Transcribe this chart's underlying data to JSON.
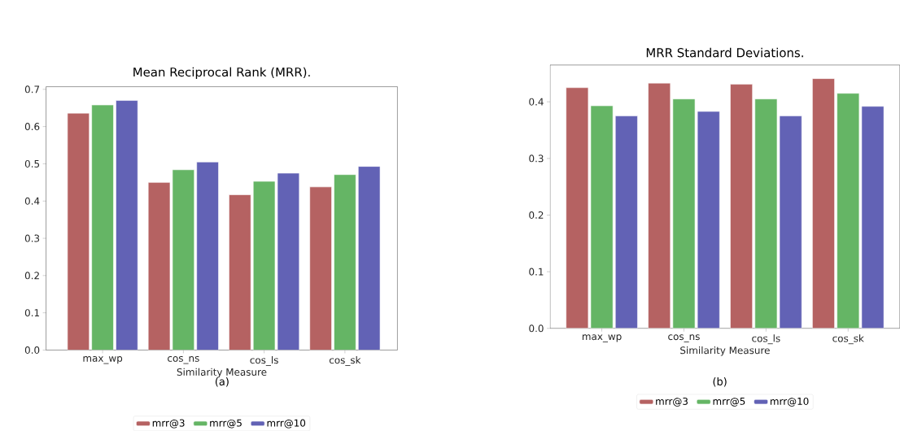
{
  "chart_data": [
    {
      "type": "bar",
      "title": "Mean Reciprocal Rank (MRR).",
      "xlabel": "Similarity Measure",
      "categories": [
        "max_wp",
        "cos_ns",
        "cos_ls",
        "cos_sk"
      ],
      "series": [
        {
          "name": "mrr@3",
          "color": "#b56262",
          "values": [
            0.636,
            0.45,
            0.417,
            0.438
          ]
        },
        {
          "name": "mrr@5",
          "color": "#65b565",
          "values": [
            0.658,
            0.484,
            0.453,
            0.471
          ]
        },
        {
          "name": "mrr@10",
          "color": "#6262b5",
          "values": [
            0.67,
            0.505,
            0.475,
            0.493
          ]
        }
      ],
      "ylim": [
        0,
        0.707
      ],
      "yticks": [
        {
          "value": 0,
          "label": "0.0"
        },
        0.1,
        0.2,
        0.3,
        0.4,
        0.5,
        0.6,
        0.7
      ],
      "legend": "bottom",
      "annotations": [
        "(a)"
      ]
    },
    {
      "type": "bar",
      "title": "MRR Standard Deviations.",
      "xlabel": "Similarity Measure",
      "categories": [
        "max_wp",
        "cos_ns",
        "cos_ls",
        "cos_sk"
      ],
      "series": [
        {
          "name": "mrr@3",
          "color": "#b56262",
          "values": [
            0.425,
            0.433,
            0.431,
            0.441
          ]
        },
        {
          "name": "mrr@5",
          "color": "#65b565",
          "values": [
            0.393,
            0.405,
            0.405,
            0.415
          ]
        },
        {
          "name": "mrr@10",
          "color": "#6262b5",
          "values": [
            0.375,
            0.383,
            0.375,
            0.392
          ]
        }
      ],
      "ylim": [
        0,
        0.465
      ],
      "yticks": [
        {
          "value": 0,
          "label": "0.0"
        },
        0.1,
        0.2,
        0.3,
        0.4
      ],
      "legend": "bottom",
      "annotations": [
        "(b)"
      ]
    }
  ]
}
